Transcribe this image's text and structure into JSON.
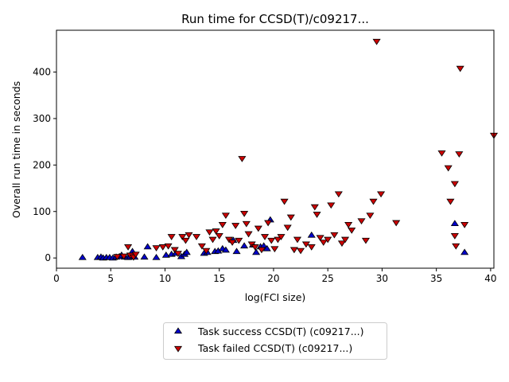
{
  "chart_data": {
    "type": "scatter",
    "title": "Run time for CCSD(T)/c09217...",
    "xlabel": "log(FCI size)",
    "ylabel": "Overall run time in seconds",
    "xlim": [
      0,
      40.3
    ],
    "ylim": [
      -22,
      490
    ],
    "xticks": [
      0,
      5,
      10,
      15,
      20,
      25,
      30,
      35,
      40
    ],
    "yticks": [
      0,
      100,
      200,
      300,
      400
    ],
    "grid": false,
    "legend_position": "below",
    "series": [
      {
        "name": "Task success CCSD(T) (c09217...)",
        "marker": "triangle-up",
        "color": "#0000cc",
        "points": [
          [
            2.4,
            1
          ],
          [
            3.8,
            1
          ],
          [
            4.1,
            2
          ],
          [
            4.3,
            0
          ],
          [
            4.6,
            1
          ],
          [
            4.9,
            1
          ],
          [
            5.2,
            0
          ],
          [
            5.5,
            2
          ],
          [
            5.8,
            3
          ],
          [
            6.0,
            6
          ],
          [
            6.3,
            2
          ],
          [
            6.6,
            1
          ],
          [
            6.8,
            3
          ],
          [
            7.0,
            14
          ],
          [
            7.2,
            2
          ],
          [
            8.1,
            2
          ],
          [
            8.4,
            24
          ],
          [
            9.2,
            1
          ],
          [
            10.1,
            6
          ],
          [
            10.6,
            8
          ],
          [
            11.0,
            10
          ],
          [
            11.5,
            3
          ],
          [
            11.8,
            8
          ],
          [
            12.0,
            12
          ],
          [
            13.6,
            10
          ],
          [
            13.9,
            12
          ],
          [
            14.6,
            14
          ],
          [
            14.9,
            15
          ],
          [
            15.3,
            20
          ],
          [
            15.6,
            17
          ],
          [
            16.3,
            38
          ],
          [
            16.6,
            14
          ],
          [
            17.3,
            26
          ],
          [
            18.1,
            28
          ],
          [
            18.4,
            12
          ],
          [
            18.8,
            24
          ],
          [
            19.1,
            26
          ],
          [
            19.4,
            20
          ],
          [
            19.7,
            82
          ],
          [
            23.5,
            49
          ],
          [
            36.7,
            74
          ],
          [
            37.6,
            12
          ]
        ]
      },
      {
        "name": "Task failed CCSD(T) (c09217...)",
        "marker": "triangle-down",
        "color": "#cc0000",
        "points": [
          [
            5.6,
            3
          ],
          [
            6.2,
            4
          ],
          [
            6.6,
            24
          ],
          [
            6.8,
            6
          ],
          [
            7.1,
            2
          ],
          [
            7.3,
            8
          ],
          [
            9.2,
            22
          ],
          [
            9.8,
            24
          ],
          [
            10.3,
            26
          ],
          [
            10.6,
            46
          ],
          [
            10.9,
            18
          ],
          [
            11.2,
            10
          ],
          [
            11.6,
            46
          ],
          [
            11.9,
            38
          ],
          [
            12.2,
            50
          ],
          [
            12.9,
            46
          ],
          [
            13.4,
            26
          ],
          [
            13.8,
            16
          ],
          [
            14.1,
            56
          ],
          [
            14.4,
            40
          ],
          [
            14.7,
            58
          ],
          [
            15.0,
            48
          ],
          [
            15.3,
            72
          ],
          [
            15.6,
            92
          ],
          [
            15.9,
            40
          ],
          [
            16.2,
            34
          ],
          [
            16.5,
            70
          ],
          [
            16.8,
            38
          ],
          [
            17.1,
            214
          ],
          [
            17.3,
            96
          ],
          [
            17.5,
            74
          ],
          [
            17.7,
            52
          ],
          [
            18.0,
            30
          ],
          [
            18.3,
            24
          ],
          [
            18.6,
            64
          ],
          [
            18.9,
            18
          ],
          [
            19.2,
            46
          ],
          [
            19.5,
            76
          ],
          [
            19.8,
            38
          ],
          [
            20.1,
            20
          ],
          [
            20.4,
            40
          ],
          [
            20.7,
            46
          ],
          [
            21.0,
            122
          ],
          [
            21.3,
            66
          ],
          [
            21.6,
            88
          ],
          [
            21.9,
            18
          ],
          [
            22.2,
            40
          ],
          [
            22.5,
            16
          ],
          [
            23.0,
            30
          ],
          [
            23.5,
            24
          ],
          [
            23.8,
            110
          ],
          [
            24.0,
            94
          ],
          [
            24.3,
            44
          ],
          [
            24.6,
            34
          ],
          [
            25.0,
            40
          ],
          [
            25.3,
            114
          ],
          [
            25.6,
            50
          ],
          [
            26.0,
            138
          ],
          [
            26.3,
            32
          ],
          [
            26.6,
            40
          ],
          [
            26.9,
            72
          ],
          [
            27.2,
            60
          ],
          [
            28.1,
            80
          ],
          [
            28.5,
            38
          ],
          [
            28.9,
            92
          ],
          [
            29.2,
            122
          ],
          [
            29.5,
            466
          ],
          [
            29.9,
            138
          ],
          [
            31.3,
            76
          ],
          [
            35.5,
            226
          ],
          [
            36.1,
            194
          ],
          [
            36.3,
            122
          ],
          [
            36.7,
            160
          ],
          [
            36.7,
            48
          ],
          [
            36.8,
            26
          ],
          [
            37.1,
            224
          ],
          [
            37.2,
            408
          ],
          [
            37.6,
            72
          ],
          [
            40.3,
            264
          ]
        ]
      }
    ]
  }
}
